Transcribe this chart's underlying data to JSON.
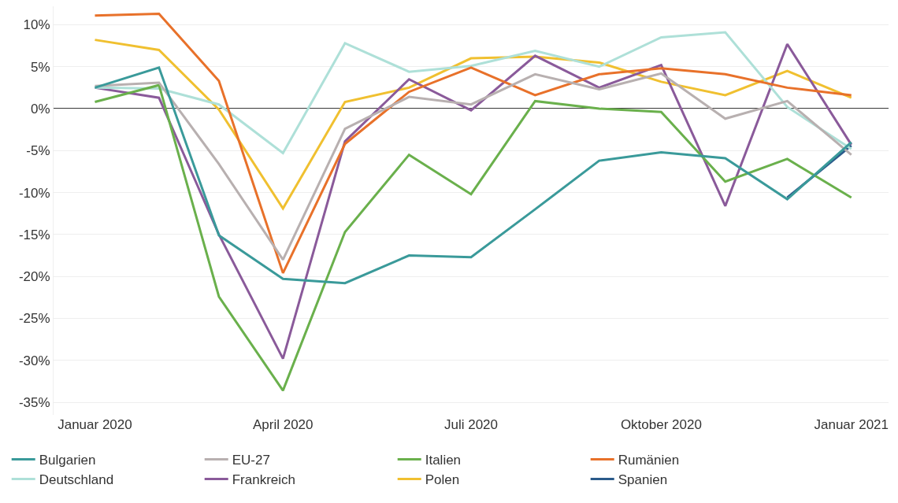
{
  "chart_data": {
    "type": "line",
    "x": [
      "2020-01",
      "2020-02",
      "2020-03",
      "2020-04",
      "2020-05",
      "2020-06",
      "2020-07",
      "2020-08",
      "2020-09",
      "2020-10",
      "2020-11",
      "2020-12",
      "2021-01"
    ],
    "series": [
      {
        "name": "Bulgarien",
        "color": "#3a9a9a",
        "values": [
          2.5,
          4.9,
          -15.1,
          -20.3,
          -20.8,
          -17.5,
          -17.7,
          -12.0,
          -6.2,
          -5.2,
          -5.9,
          -10.8,
          -4.0
        ]
      },
      {
        "name": "EU-27",
        "color": "#b8b0b0",
        "values": [
          2.7,
          3.1,
          -6.6,
          -18.0,
          -2.4,
          1.4,
          0.5,
          4.1,
          2.3,
          4.2,
          -1.2,
          0.9,
          -5.5
        ]
      },
      {
        "name": "Italien",
        "color": "#6ab04c",
        "values": [
          0.8,
          2.8,
          -22.4,
          -33.6,
          -14.7,
          -5.5,
          -10.2,
          0.9,
          0.0,
          -0.4,
          -8.7,
          -6.0,
          -10.6
        ]
      },
      {
        "name": "Rumänien",
        "color": "#e8712a",
        "values": [
          11.1,
          11.3,
          3.3,
          -19.6,
          -4.2,
          2.0,
          4.9,
          1.6,
          4.1,
          4.8,
          4.1,
          2.5,
          1.6
        ]
      },
      {
        "name": "Deutschland",
        "color": "#aee0d8",
        "values": [
          2.5,
          2.4,
          0.5,
          -5.3,
          7.8,
          4.4,
          5.1,
          6.9,
          5.0,
          8.5,
          9.1,
          0.2,
          -4.8
        ]
      },
      {
        "name": "Frankreich",
        "color": "#8a5a9a",
        "values": [
          2.5,
          1.3,
          -15.0,
          -29.8,
          -3.9,
          3.5,
          -0.2,
          6.3,
          2.5,
          5.2,
          -11.6,
          7.7,
          -4.3
        ]
      },
      {
        "name": "Polen",
        "color": "#f0c030",
        "values": [
          8.2,
          7.0,
          -0.1,
          -11.9,
          0.8,
          2.5,
          6.0,
          6.2,
          5.5,
          3.2,
          1.6,
          4.5,
          1.3
        ]
      },
      {
        "name": "Spanien",
        "color": "#2a5a8a",
        "values": [
          null,
          null,
          null,
          null,
          null,
          null,
          null,
          null,
          null,
          null,
          null,
          -10.6,
          -4.4
        ]
      }
    ],
    "xlim": [
      "2019-12-12",
      "2021-01-19"
    ],
    "xticks": [
      {
        "value": "2020-01",
        "label": "Januar 2020"
      },
      {
        "value": "2020-04",
        "label": "April 2020"
      },
      {
        "value": "2020-07",
        "label": "Juli 2020"
      },
      {
        "value": "2020-10",
        "label": "Oktober 2020"
      },
      {
        "value": "2021-01",
        "label": "Januar 2021"
      }
    ],
    "ylim": [
      -36.5,
      12.2
    ],
    "yticks": [
      {
        "value": -35,
        "label": "-35%"
      },
      {
        "value": -30,
        "label": "-30%"
      },
      {
        "value": -25,
        "label": "-25%"
      },
      {
        "value": -20,
        "label": "-20%"
      },
      {
        "value": -15,
        "label": "-15%"
      },
      {
        "value": -10,
        "label": "-10%"
      },
      {
        "value": -5,
        "label": "-5%"
      },
      {
        "value": 0,
        "label": "0%"
      },
      {
        "value": 5,
        "label": "5%"
      },
      {
        "value": 10,
        "label": "10%"
      }
    ],
    "ref_lines": [
      {
        "axis": "y",
        "value": 0,
        "color": "#000000"
      }
    ],
    "grid": "y",
    "legend": "bottom",
    "marker": "none",
    "line_style": "solid"
  }
}
